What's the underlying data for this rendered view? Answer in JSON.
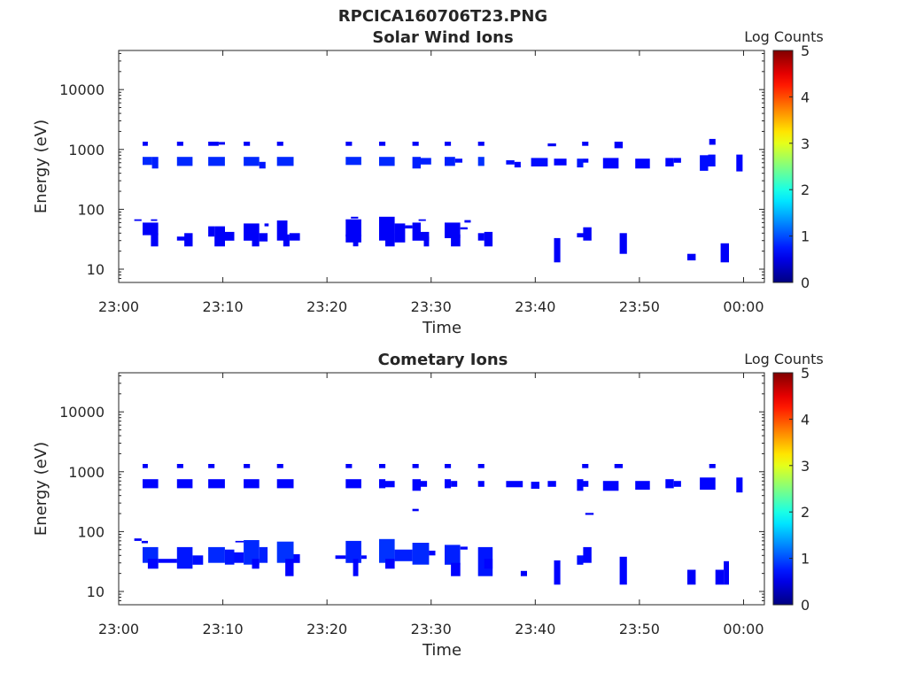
{
  "figure_title": "RPCICA160706T23.PNG",
  "chart_data": [
    {
      "type": "heatmap",
      "title": "Solar Wind Ions",
      "xlabel": "Time",
      "ylabel": "Energy (eV)",
      "x_range": [
        "23:00",
        "00:02"
      ],
      "x_ticks": [
        "23:00",
        "23:10",
        "23:20",
        "23:30",
        "23:40",
        "23:50",
        "00:00"
      ],
      "y_scale": "log",
      "y_range": [
        6,
        45000
      ],
      "y_ticks": [
        "10",
        "100",
        "1000",
        "10000"
      ],
      "colorbar": {
        "label": "Log Counts",
        "min": 0,
        "max": 5,
        "ticks": [
          "0",
          "1",
          "2",
          "3",
          "4",
          "5"
        ],
        "colormap": "jet"
      },
      "cells": [
        [
          2.3,
          2.8,
          1150,
          1350,
          0.1
        ],
        [
          5.6,
          6.2,
          1150,
          1350,
          0.1
        ],
        [
          8.6,
          9.6,
          1150,
          1350,
          0.1
        ],
        [
          9.6,
          10.2,
          1200,
          1330,
          0.05
        ],
        [
          12,
          12.6,
          1150,
          1350,
          0.1
        ],
        [
          15.2,
          15.8,
          1150,
          1350,
          0.1
        ],
        [
          21.8,
          22.4,
          1150,
          1350,
          0.1
        ],
        [
          25,
          25.6,
          1150,
          1350,
          0.1
        ],
        [
          28.2,
          28.8,
          1150,
          1350,
          0.1
        ],
        [
          31.3,
          31.9,
          1150,
          1350,
          0.1
        ],
        [
          34.5,
          35.1,
          1150,
          1350,
          0.1
        ],
        [
          41.2,
          42,
          1130,
          1260,
          0.05
        ],
        [
          44.5,
          45.1,
          1150,
          1350,
          0.1
        ],
        [
          47.6,
          48.4,
          1050,
          1350,
          0.1
        ],
        [
          56.7,
          57.3,
          1200,
          1500,
          0.1
        ],
        [
          2.3,
          3.2,
          550,
          750,
          0.6
        ],
        [
          3.2,
          3.8,
          480,
          750,
          0.5
        ],
        [
          5.6,
          7.1,
          530,
          750,
          0.6
        ],
        [
          8.6,
          10.2,
          530,
          750,
          0.6
        ],
        [
          12,
          13.5,
          530,
          750,
          0.6
        ],
        [
          13.5,
          14.1,
          480,
          620,
          0.4
        ],
        [
          15.2,
          16.8,
          530,
          750,
          0.6
        ],
        [
          21.8,
          23.3,
          550,
          750,
          0.6
        ],
        [
          25,
          26.5,
          530,
          750,
          0.6
        ],
        [
          28.2,
          29,
          480,
          750,
          0.5
        ],
        [
          29,
          30,
          560,
          720,
          0.5
        ],
        [
          31.3,
          32.3,
          530,
          750,
          0.5
        ],
        [
          32.3,
          33,
          600,
          700,
          0.3
        ],
        [
          34.5,
          35.1,
          530,
          750,
          0.7
        ],
        [
          37.2,
          38,
          560,
          660,
          0.3
        ],
        [
          38,
          38.6,
          500,
          620,
          0.2
        ],
        [
          39.6,
          41.2,
          520,
          720,
          0.3
        ],
        [
          41.8,
          43,
          540,
          700,
          0.2
        ],
        [
          44,
          44.6,
          500,
          700,
          0.4
        ],
        [
          44.6,
          45.1,
          600,
          700,
          0.2
        ],
        [
          46.5,
          48,
          480,
          720,
          0.2
        ],
        [
          49.6,
          51,
          480,
          700,
          0.2
        ],
        [
          52.5,
          53.3,
          520,
          720,
          0.2
        ],
        [
          53.3,
          54,
          600,
          720,
          0.2
        ],
        [
          55.8,
          56.6,
          440,
          800,
          0.3
        ],
        [
          56.6,
          57.3,
          520,
          820,
          0.3
        ],
        [
          59.3,
          59.9,
          430,
          820,
          0.2
        ],
        [
          1.5,
          2.2,
          64,
          68,
          0.1
        ],
        [
          3.1,
          3.7,
          64,
          68,
          0.1
        ],
        [
          2.3,
          3.8,
          37,
          60,
          0.1
        ],
        [
          3.1,
          3.8,
          24,
          40,
          0.1
        ],
        [
          5.6,
          7.1,
          30,
          35,
          0.1
        ],
        [
          6.3,
          7.1,
          24,
          40,
          0.1
        ],
        [
          8.6,
          9.2,
          35,
          52,
          0.1
        ],
        [
          9.2,
          10.2,
          24,
          52,
          0.1
        ],
        [
          10.2,
          11.1,
          30,
          42,
          0.1
        ],
        [
          12,
          13.5,
          30,
          58,
          0.1
        ],
        [
          12.8,
          13.5,
          24,
          40,
          0.1
        ],
        [
          13.5,
          14.3,
          29,
          40,
          0.1
        ],
        [
          14,
          14.4,
          52,
          58,
          0.1
        ],
        [
          15.2,
          16.2,
          30,
          65,
          0.1
        ],
        [
          15.8,
          16.4,
          24,
          38,
          0.1
        ],
        [
          16.4,
          17.4,
          30,
          40,
          0.1
        ],
        [
          21.8,
          23.3,
          35,
          68,
          0.1
        ],
        [
          21.8,
          23.3,
          28,
          38,
          0.1
        ],
        [
          22.5,
          23,
          24,
          32,
          0.1
        ],
        [
          22.3,
          23,
          70,
          75,
          0.1
        ],
        [
          25,
          26.5,
          30,
          75,
          0.1
        ],
        [
          25.6,
          26.5,
          24,
          40,
          0.1
        ],
        [
          26.5,
          27.5,
          28,
          58,
          0.1
        ],
        [
          27.5,
          28.2,
          48,
          54,
          0.1
        ],
        [
          28.2,
          29,
          30,
          60,
          0.1
        ],
        [
          29,
          29.8,
          30,
          42,
          0.1
        ],
        [
          29.3,
          29.8,
          24,
          35,
          0.1
        ],
        [
          28.8,
          29.5,
          64,
          68,
          0.1
        ],
        [
          31.3,
          32.8,
          33,
          60,
          0.1
        ],
        [
          31.9,
          32.8,
          24,
          38,
          0.1
        ],
        [
          32.8,
          33.5,
          46,
          50,
          0.1
        ],
        [
          33.2,
          33.8,
          60,
          66,
          0.1
        ],
        [
          34.5,
          35.1,
          30,
          40,
          0.1
        ],
        [
          35.1,
          35.9,
          24,
          42,
          0.1
        ],
        [
          41.8,
          42.4,
          13,
          33,
          0.1
        ],
        [
          44,
          44.6,
          34,
          40,
          0.1
        ],
        [
          44.6,
          45.4,
          30,
          50,
          0.1
        ],
        [
          48.1,
          48.8,
          18,
          40,
          0.1
        ],
        [
          54.6,
          55.4,
          14,
          18,
          0.1
        ],
        [
          57.8,
          58.6,
          13,
          27,
          0.1
        ]
      ]
    },
    {
      "type": "heatmap",
      "title": "Cometary Ions",
      "xlabel": "Time",
      "ylabel": "Energy (eV)",
      "x_range": [
        "23:00",
        "00:02"
      ],
      "x_ticks": [
        "23:00",
        "23:10",
        "23:20",
        "23:30",
        "23:40",
        "23:50",
        "00:00"
      ],
      "y_scale": "log",
      "y_range": [
        6,
        45000
      ],
      "y_ticks": [
        "10",
        "100",
        "1000",
        "10000"
      ],
      "colorbar": {
        "label": "Log Counts",
        "min": 0,
        "max": 5,
        "ticks": [
          "0",
          "1",
          "2",
          "3",
          "4",
          "5"
        ],
        "colormap": "jet"
      },
      "cells": [
        [
          2.3,
          2.8,
          1150,
          1350,
          0.1
        ],
        [
          5.6,
          6.2,
          1150,
          1350,
          0.1
        ],
        [
          8.6,
          9.2,
          1150,
          1350,
          0.1
        ],
        [
          12,
          12.6,
          1150,
          1350,
          0.1
        ],
        [
          15.2,
          15.8,
          1150,
          1350,
          0.1
        ],
        [
          21.8,
          22.4,
          1150,
          1350,
          0.1
        ],
        [
          25,
          25.6,
          1150,
          1350,
          0.1
        ],
        [
          28.2,
          28.8,
          1150,
          1350,
          0.1
        ],
        [
          31.3,
          31.9,
          1150,
          1350,
          0.1
        ],
        [
          34.5,
          35.1,
          1150,
          1350,
          0.1
        ],
        [
          44.5,
          45.1,
          1150,
          1350,
          0.1
        ],
        [
          47.6,
          48.4,
          1150,
          1350,
          0.1
        ],
        [
          56.7,
          57.3,
          1150,
          1350,
          0.1
        ],
        [
          2.3,
          3.8,
          530,
          750,
          0.2
        ],
        [
          5.6,
          7.1,
          530,
          750,
          0.2
        ],
        [
          8.6,
          10.2,
          530,
          750,
          0.2
        ],
        [
          12,
          13.5,
          530,
          750,
          0.2
        ],
        [
          15.2,
          16.8,
          530,
          750,
          0.2
        ],
        [
          21.8,
          23.3,
          530,
          750,
          0.2
        ],
        [
          25,
          25.6,
          530,
          750,
          0.2
        ],
        [
          25.6,
          26.5,
          550,
          700,
          0.2
        ],
        [
          28.2,
          29,
          480,
          750,
          0.2
        ],
        [
          29,
          29.6,
          560,
          700,
          0.2
        ],
        [
          31.3,
          31.9,
          530,
          750,
          0.2
        ],
        [
          31.9,
          32.5,
          560,
          700,
          0.2
        ],
        [
          34.5,
          35.1,
          560,
          700,
          0.2
        ],
        [
          37.2,
          38.8,
          550,
          700,
          0.2
        ],
        [
          39.6,
          40.4,
          520,
          680,
          0.2
        ],
        [
          41.2,
          42,
          560,
          700,
          0.2
        ],
        [
          44,
          44.6,
          480,
          750,
          0.2
        ],
        [
          44.6,
          45.1,
          560,
          700,
          0.2
        ],
        [
          46.5,
          48,
          480,
          700,
          0.2
        ],
        [
          49.6,
          51,
          500,
          700,
          0.2
        ],
        [
          52.5,
          53.3,
          530,
          750,
          0.2
        ],
        [
          53.3,
          54,
          560,
          700,
          0.2
        ],
        [
          55.8,
          57.3,
          500,
          800,
          0.2
        ],
        [
          59.3,
          59.9,
          450,
          800,
          0.2
        ],
        [
          28.2,
          28.8,
          220,
          240,
          0.1
        ],
        [
          44.8,
          45.6,
          190,
          205,
          0.1
        ],
        [
          1.5,
          2.2,
          70,
          77,
          0.1
        ],
        [
          2.2,
          2.8,
          64,
          70,
          0.1
        ],
        [
          2.3,
          3.8,
          30,
          55,
          0.6
        ],
        [
          2.8,
          3.8,
          24,
          35,
          0.2
        ],
        [
          3.8,
          5.6,
          30,
          35,
          0.2
        ],
        [
          5.6,
          7.1,
          24,
          55,
          0.4
        ],
        [
          7.1,
          8.1,
          28,
          40,
          0.3
        ],
        [
          8.6,
          10.2,
          30,
          55,
          0.6
        ],
        [
          10.2,
          11.1,
          28,
          50,
          0.4
        ],
        [
          11.1,
          12,
          30,
          45,
          0.3
        ],
        [
          11.2,
          12,
          66,
          70,
          0.1
        ],
        [
          12,
          13.5,
          28,
          72,
          0.6
        ],
        [
          13.5,
          14.3,
          30,
          55,
          0.5
        ],
        [
          12.8,
          13.5,
          24,
          35,
          0.2
        ],
        [
          15.2,
          16.8,
          30,
          68,
          0.7
        ],
        [
          16,
          16.8,
          18,
          35,
          0.2
        ],
        [
          16.8,
          17.4,
          30,
          42,
          0.2
        ],
        [
          20.8,
          21.8,
          35,
          40,
          0.2
        ],
        [
          21.8,
          23.3,
          30,
          70,
          0.5
        ],
        [
          22.5,
          23,
          18,
          35,
          0.2
        ],
        [
          23.3,
          23.8,
          35,
          40,
          0.2
        ],
        [
          25,
          26.5,
          30,
          75,
          0.7
        ],
        [
          25.6,
          26.5,
          24,
          35,
          0.2
        ],
        [
          26.5,
          28.2,
          32,
          50,
          0.5
        ],
        [
          28.2,
          29.8,
          28,
          65,
          0.6
        ],
        [
          29.8,
          30.4,
          40,
          48,
          0.2
        ],
        [
          31.3,
          32.8,
          28,
          60,
          0.5
        ],
        [
          31.9,
          32.8,
          18,
          30,
          0.2
        ],
        [
          32.8,
          33.5,
          50,
          56,
          0.2
        ],
        [
          34.5,
          35.9,
          18,
          55,
          0.4
        ],
        [
          35.1,
          35.9,
          24,
          35,
          0.2
        ],
        [
          38.6,
          39.2,
          18,
          22,
          0.1
        ],
        [
          41.8,
          42.4,
          13,
          33,
          0.2
        ],
        [
          44,
          44.6,
          28,
          40,
          0.3
        ],
        [
          44.6,
          45.4,
          30,
          55,
          0.2
        ],
        [
          48.1,
          48.8,
          13,
          38,
          0.2
        ],
        [
          54.6,
          55.4,
          13,
          23,
          0.1
        ],
        [
          57.3,
          58.1,
          13,
          23,
          0.1
        ],
        [
          58.1,
          58.6,
          13,
          32,
          0.1
        ]
      ]
    }
  ]
}
